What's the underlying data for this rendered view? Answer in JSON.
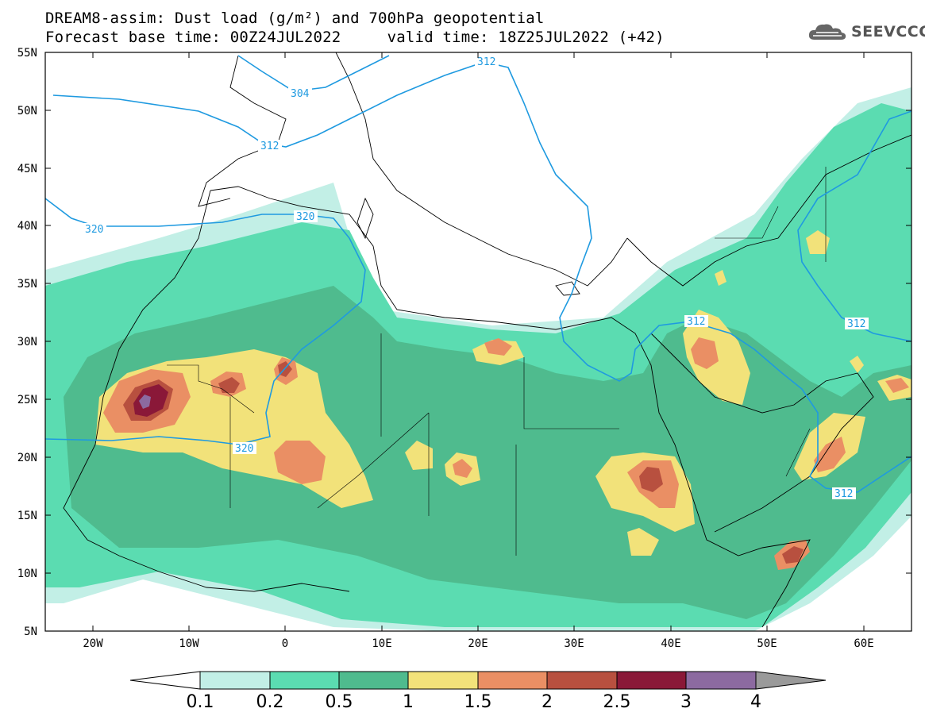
{
  "title": {
    "line1": "DREAM8-assim: Dust load (g/m²) and 700hPa geopotential",
    "line2": "Forecast base time: 00Z24JUL2022     valid time: 18Z25JUL2022 (+42)"
  },
  "logo": {
    "text": "SEEVCCC",
    "icon": "cloud-icon"
  },
  "map": {
    "lat_labels": [
      "55N",
      "50N",
      "45N",
      "40N",
      "35N",
      "30N",
      "25N",
      "20N",
      "15N",
      "10N",
      "5N"
    ],
    "lon_labels": [
      "20W",
      "10W",
      "0",
      "10E",
      "20E",
      "30E",
      "40E",
      "50E",
      "60E"
    ],
    "contour_labels": [
      "312",
      "304",
      "312",
      "320",
      "320",
      "312",
      "320",
      "312",
      "312"
    ],
    "dust_colors": {
      "0.1": "#c2efe6",
      "0.2": "#5bdcb1",
      "0.5": "#4fbb8e",
      "1": "#f2e27a",
      "1.5": "#ea8f64",
      "2": "#b8503f",
      "2.5": "#8a1838",
      "3": "#8c6aa0",
      "4": "#9a9a9a"
    },
    "contour_color": "#1f9ae0"
  },
  "colorbar": {
    "labels": [
      "0.1",
      "0.2",
      "0.5",
      "1",
      "1.5",
      "2",
      "2.5",
      "3",
      "4"
    ]
  }
}
